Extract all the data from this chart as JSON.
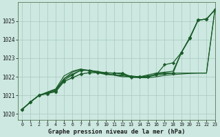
{
  "background_color": "#cce8e0",
  "plot_bg_color": "#cce8e0",
  "grid_color": "#aac8c0",
  "line_color": "#1a5c2a",
  "xlabel": "Graphe pression niveau de la mer (hPa)",
  "ylim": [
    1019.7,
    1026.0
  ],
  "xlim": [
    -0.5,
    23
  ],
  "yticks": [
    1020,
    1021,
    1022,
    1023,
    1024,
    1025
  ],
  "xticks": [
    0,
    1,
    2,
    3,
    4,
    5,
    6,
    7,
    8,
    9,
    10,
    11,
    12,
    13,
    14,
    15,
    16,
    17,
    18,
    19,
    20,
    21,
    22,
    23
  ],
  "series": [
    {
      "values": [
        1020.25,
        1020.65,
        1021.0,
        1021.1,
        1021.2,
        1021.75,
        1021.95,
        1022.15,
        1022.22,
        1022.22,
        1022.2,
        1022.2,
        1022.2,
        1022.0,
        1022.0,
        1022.0,
        1022.15,
        1022.2,
        1022.2,
        1023.3,
        1024.1,
        1025.05,
        1025.1,
        1025.6
      ],
      "marker": "D",
      "markersize": 2.5,
      "linewidth": 1.0
    },
    {
      "values": [
        1020.25,
        1020.65,
        1021.0,
        1021.12,
        1021.25,
        1021.82,
        1022.1,
        1022.35,
        1022.35,
        1022.28,
        1022.22,
        1022.2,
        1022.15,
        1021.95,
        1022.0,
        1022.05,
        1022.1,
        1022.65,
        1022.75,
        1023.3,
        1024.05,
        1025.05,
        1025.1,
        1025.6
      ],
      "marker": "D",
      "markersize": 2.2,
      "linewidth": 0.9
    },
    {
      "values": [
        1020.25,
        1020.65,
        1021.0,
        1021.15,
        1021.3,
        1021.9,
        1022.25,
        1022.4,
        1022.35,
        1022.25,
        1022.15,
        1022.1,
        1022.05,
        1022.0,
        1021.95,
        1022.0,
        1022.1,
        1022.15,
        1022.2,
        1022.2,
        1022.2,
        1022.2,
        1022.2,
        1025.6
      ],
      "marker": null,
      "markersize": 0,
      "linewidth": 0.85
    },
    {
      "values": [
        1020.25,
        1020.65,
        1021.0,
        1021.18,
        1021.35,
        1022.05,
        1022.3,
        1022.42,
        1022.32,
        1022.22,
        1022.12,
        1022.1,
        1022.1,
        1022.05,
        1022.0,
        1022.1,
        1022.2,
        1022.25,
        1022.3,
        1023.3,
        1024.1,
        1025.05,
        1025.1,
        1025.6
      ],
      "marker": null,
      "markersize": 0,
      "linewidth": 0.85
    },
    {
      "values": [
        1020.25,
        1020.65,
        1021.0,
        1021.15,
        1021.3,
        1021.9,
        1022.15,
        1022.35,
        1022.35,
        1022.28,
        1022.18,
        1022.08,
        1022.0,
        1022.0,
        1021.95,
        1021.95,
        1022.0,
        1022.08,
        1022.12,
        1022.15,
        1022.18,
        1022.2,
        1022.2,
        1025.6
      ],
      "marker": null,
      "markersize": 0,
      "linewidth": 0.85
    }
  ]
}
